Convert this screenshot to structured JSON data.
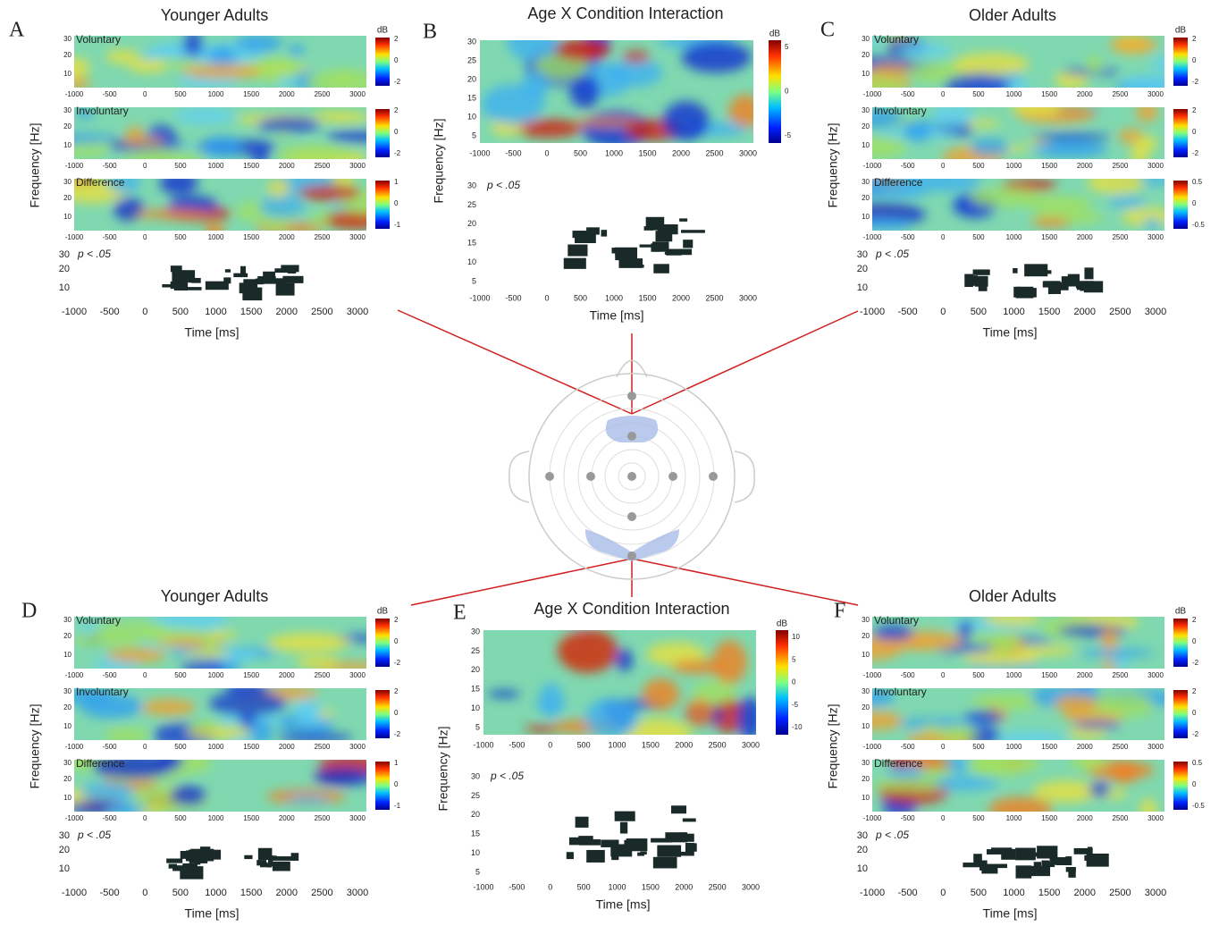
{
  "panels": [
    {
      "letter": "A",
      "title": "Younger Adults",
      "colorbar_unit": "dB",
      "freq_ticks": [
        "30",
        "20",
        "10"
      ],
      "xticks": [
        "-1000",
        "-500",
        "0",
        "500",
        "1000",
        "1500",
        "2000",
        "2500",
        "3000"
      ],
      "subplots": [
        {
          "label": "Voluntary",
          "colorbar_ticks": [
            "2",
            "0",
            "-2"
          ]
        },
        {
          "label": "Involuntary",
          "colorbar_ticks": [
            "2",
            "0",
            "-2"
          ]
        },
        {
          "label": "Difference",
          "colorbar_ticks": [
            "1",
            "0",
            "-1"
          ]
        }
      ],
      "significance": {
        "label": "p < .05",
        "yticks": [
          "30",
          "20",
          "10"
        ]
      },
      "xlabel": "Time [ms]",
      "ylabel": "Frequency [Hz]"
    },
    {
      "letter": "B",
      "title": "Age X Condition Interaction",
      "colorbar_unit": "dB",
      "colorbar_ticks": [
        "5",
        "0",
        "-5"
      ],
      "yticks": [
        "30",
        "25",
        "20",
        "15",
        "10",
        "5"
      ],
      "xticks": [
        "-1000",
        "-500",
        "0",
        "500",
        "1000",
        "1500",
        "2000",
        "2500",
        "3000"
      ],
      "significance": {
        "label": "p < .05",
        "yticks": [
          "30",
          "25",
          "20",
          "15",
          "10",
          "5"
        ]
      },
      "xlabel": "Time [ms]",
      "ylabel": "Frequency [Hz]"
    },
    {
      "letter": "C",
      "title": "Older Adults",
      "colorbar_unit": "dB",
      "freq_ticks": [
        "30",
        "20",
        "10"
      ],
      "xticks": [
        "-1000",
        "-500",
        "0",
        "500",
        "1000",
        "1500",
        "2000",
        "2500",
        "3000"
      ],
      "subplots": [
        {
          "label": "Voluntary",
          "colorbar_ticks": [
            "2",
            "0",
            "-2"
          ]
        },
        {
          "label": "Involuntary",
          "colorbar_ticks": [
            "2",
            "0",
            "-2"
          ]
        },
        {
          "label": "Difference",
          "colorbar_ticks": [
            "0.5",
            "0",
            "-0.5"
          ]
        }
      ],
      "significance": {
        "label": "p < .05",
        "yticks": [
          "30",
          "20",
          "10"
        ]
      },
      "xlabel": "Time [ms]",
      "ylabel": "Frequency [Hz]"
    },
    {
      "letter": "D",
      "title": "Younger Adults",
      "colorbar_unit": "dB",
      "freq_ticks": [
        "30",
        "20",
        "10"
      ],
      "xticks": [
        "-1000",
        "-500",
        "0",
        "500",
        "1000",
        "1500",
        "2000",
        "2500",
        "3000"
      ],
      "subplots": [
        {
          "label": "Voluntary",
          "colorbar_ticks": [
            "2",
            "0",
            "-2"
          ]
        },
        {
          "label": "Involuntary",
          "colorbar_ticks": [
            "2",
            "0",
            "-2"
          ]
        },
        {
          "label": "Difference",
          "colorbar_ticks": [
            "1",
            "0",
            "-1"
          ]
        }
      ],
      "significance": {
        "label": "p < .05",
        "yticks": [
          "30",
          "20",
          "10"
        ]
      },
      "xlabel": "Time [ms]",
      "ylabel": "Frequency [Hz]"
    },
    {
      "letter": "E",
      "title": "Age X Condition Interaction",
      "colorbar_unit": "dB",
      "colorbar_ticks": [
        "10",
        "5",
        "0",
        "-5",
        "-10"
      ],
      "yticks": [
        "30",
        "25",
        "20",
        "15",
        "10",
        "5"
      ],
      "xticks": [
        "-1000",
        "-500",
        "0",
        "500",
        "1000",
        "1500",
        "2000",
        "2500",
        "3000"
      ],
      "significance": {
        "label": "p < .05",
        "yticks": [
          "30",
          "25",
          "20",
          "15",
          "10",
          "5"
        ]
      },
      "xlabel": "Time [ms]",
      "ylabel": "Frequency [Hz]"
    },
    {
      "letter": "F",
      "title": "Older Adults",
      "colorbar_unit": "dB",
      "freq_ticks": [
        "30",
        "20",
        "10"
      ],
      "xticks": [
        "-1000",
        "-500",
        "0",
        "500",
        "1000",
        "1500",
        "2000",
        "2500",
        "3000"
      ],
      "subplots": [
        {
          "label": "Voluntary",
          "colorbar_ticks": [
            "2",
            "0",
            "-2"
          ]
        },
        {
          "label": "Involuntary",
          "colorbar_ticks": [
            "2",
            "0",
            "-2"
          ]
        },
        {
          "label": "Difference",
          "colorbar_ticks": [
            "0.5",
            "0",
            "-0.5"
          ]
        }
      ],
      "significance": {
        "label": "p < .05",
        "yticks": [
          "30",
          "20",
          "10"
        ]
      },
      "xlabel": "Time [ms]",
      "ylabel": "Frequency [Hz]"
    }
  ]
}
